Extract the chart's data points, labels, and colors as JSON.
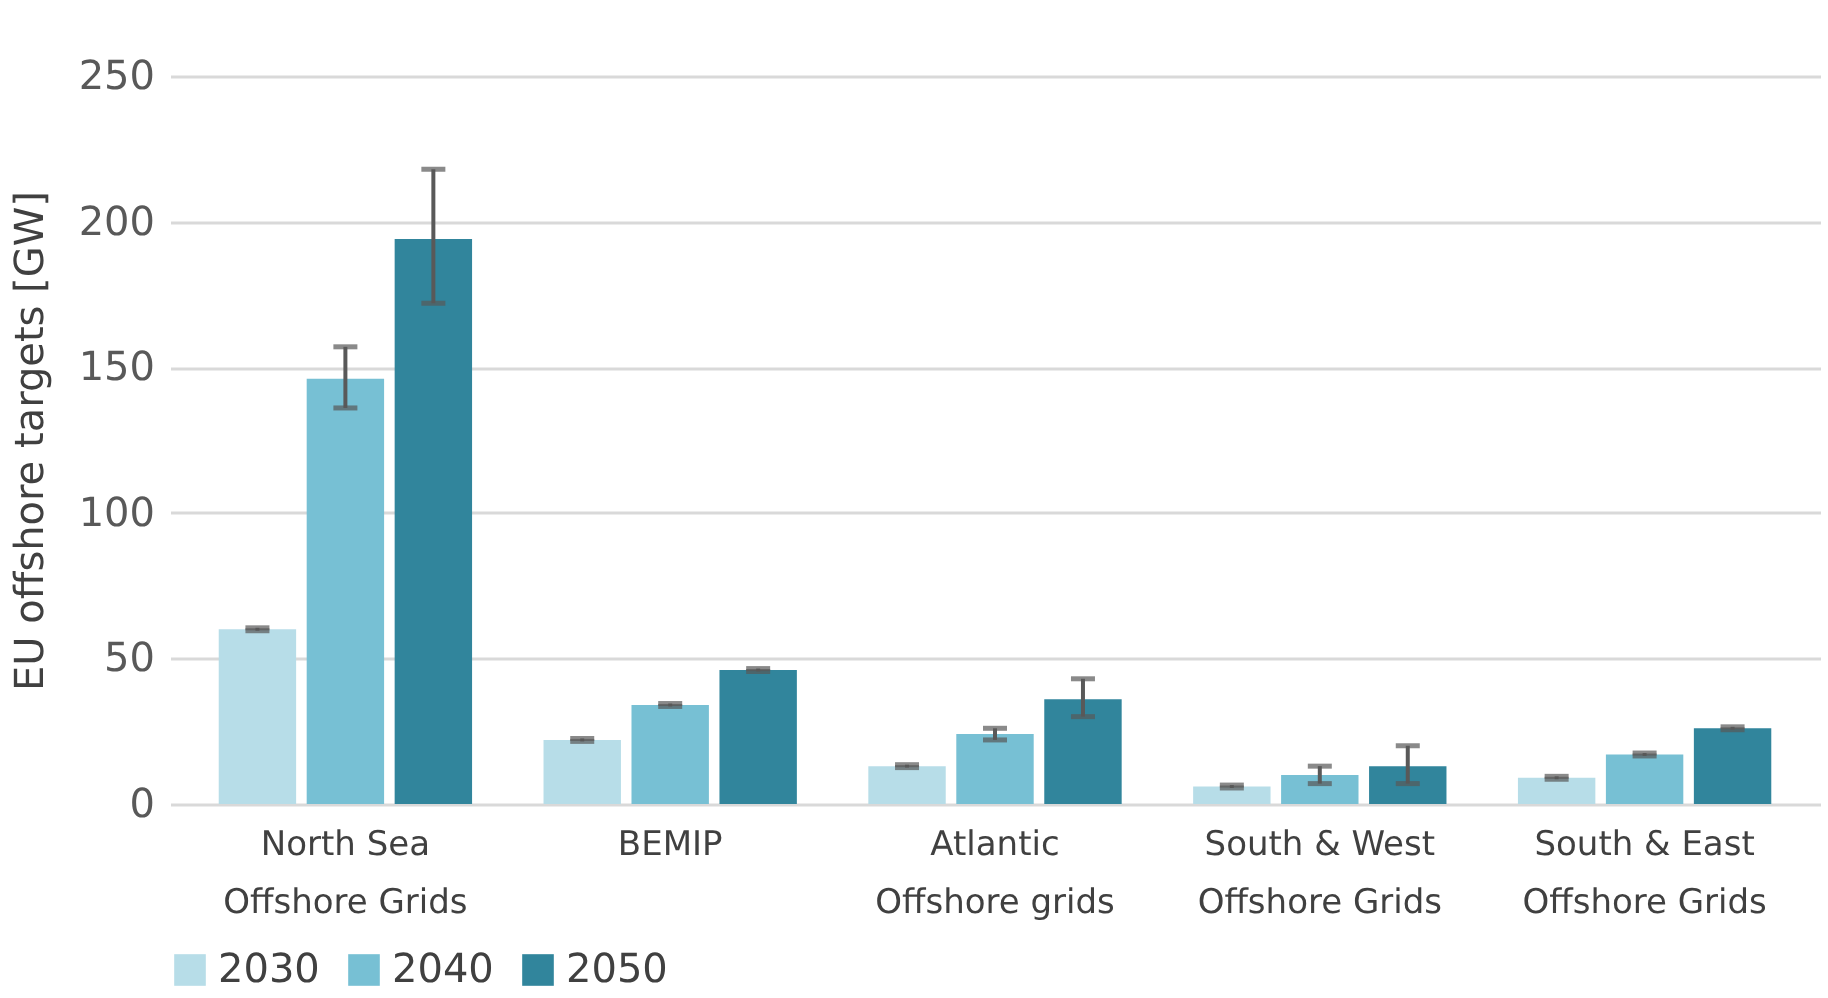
{
  "chart_data": {
    "type": "bar",
    "ylabel": "EU offshore targets [GW]",
    "categories": [
      "North Sea Offshore Grids",
      "BEMIP",
      "Atlantic Offshore grids",
      "South & West Offshore Grids",
      "South & East Offshore Grids"
    ],
    "series": [
      {
        "name": "2030",
        "color": "#b7dde8",
        "values": [
          60,
          22,
          13,
          6,
          9
        ],
        "errors": [
          0.5,
          0.5,
          0.5,
          0.5,
          0.5
        ]
      },
      {
        "name": "2040",
        "color": "#77c0d4",
        "values": [
          146,
          34,
          24,
          10,
          17
        ],
        "errors": [
          [
            136,
            157
          ],
          0.5,
          [
            22,
            26
          ],
          [
            7,
            13
          ],
          0.5
        ]
      },
      {
        "name": "2050",
        "color": "#31859c",
        "values": [
          194,
          46,
          36,
          13,
          26
        ],
        "errors": [
          [
            172,
            218
          ],
          0.5,
          [
            30,
            43
          ],
          [
            7,
            20
          ],
          0.5
        ]
      }
    ],
    "ylim": [
      0,
      250
    ],
    "yticks": [
      0,
      50,
      100,
      150,
      200,
      250
    ],
    "grid": "y",
    "legend": "bottom"
  }
}
